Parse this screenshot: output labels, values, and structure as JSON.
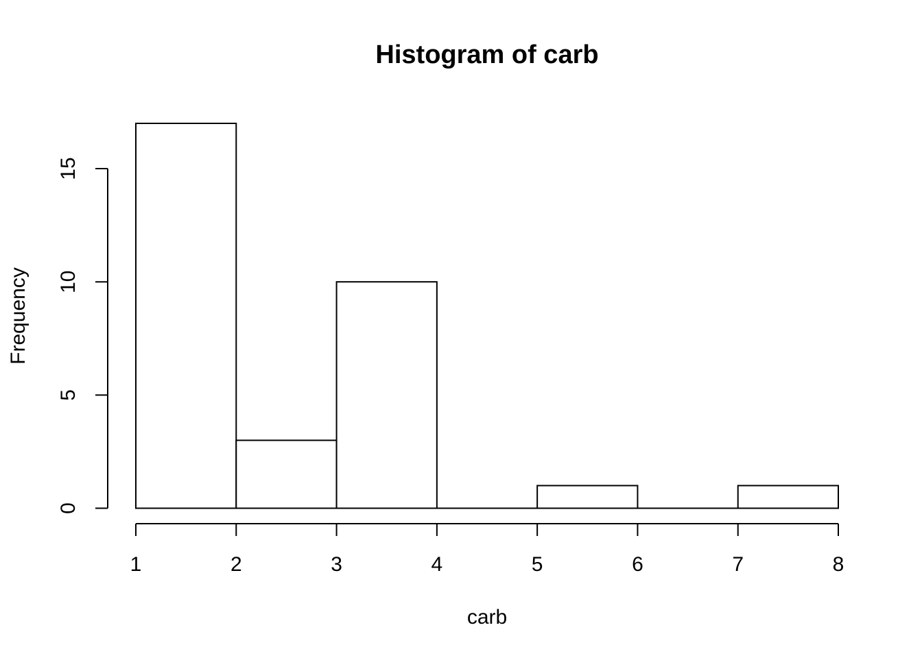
{
  "chart_data": {
    "type": "bar",
    "subtype": "histogram",
    "title": "Histogram of carb",
    "xlabel": "carb",
    "ylabel": "Frequency",
    "bins": [
      {
        "start": 1,
        "end": 2,
        "count": 17
      },
      {
        "start": 2,
        "end": 3,
        "count": 3
      },
      {
        "start": 3,
        "end": 4,
        "count": 10
      },
      {
        "start": 4,
        "end": 5,
        "count": 0
      },
      {
        "start": 5,
        "end": 6,
        "count": 1
      },
      {
        "start": 6,
        "end": 7,
        "count": 0
      },
      {
        "start": 7,
        "end": 8,
        "count": 1
      }
    ],
    "xlim": [
      1,
      8
    ],
    "ylim": [
      0,
      17
    ],
    "xticks": [
      1,
      2,
      3,
      4,
      5,
      6,
      7,
      8
    ],
    "yticks": [
      0,
      5,
      10,
      15
    ],
    "grid": false,
    "legend": "none",
    "colors": {
      "bar_fill": "#ffffff",
      "bar_stroke": "#000000",
      "text": "#000000"
    }
  }
}
